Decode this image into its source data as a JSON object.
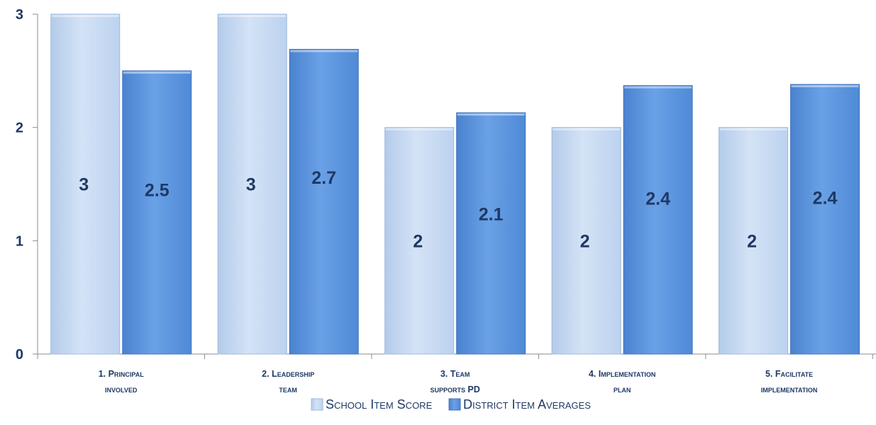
{
  "chart_data": {
    "type": "bar",
    "categories": [
      [
        "1. Principal",
        "involved"
      ],
      [
        "2. Leadership",
        "team"
      ],
      [
        "3. Team",
        "supports PD"
      ],
      [
        "4. Implementation",
        "plan"
      ],
      [
        "5. Facilitate",
        "implementation"
      ]
    ],
    "series": [
      {
        "name": "School Item Score",
        "values": [
          3,
          3,
          2,
          2,
          2
        ],
        "labels": [
          "3",
          "3",
          "2",
          "2",
          "2"
        ],
        "color": "#c6d9f1"
      },
      {
        "name": "District Item Averages",
        "values": [
          2.5,
          2.69,
          2.13,
          2.37,
          2.38
        ],
        "labels": [
          "2.5",
          "2.7",
          "2.1",
          "2.4",
          "2.4"
        ],
        "color": "#5b93dc"
      }
    ],
    "yticks": [
      "0",
      "1",
      "2",
      "3"
    ],
    "ylim": [
      0,
      3
    ],
    "grid": false,
    "legend_position": "bottom",
    "label_color": "#1f3864"
  }
}
